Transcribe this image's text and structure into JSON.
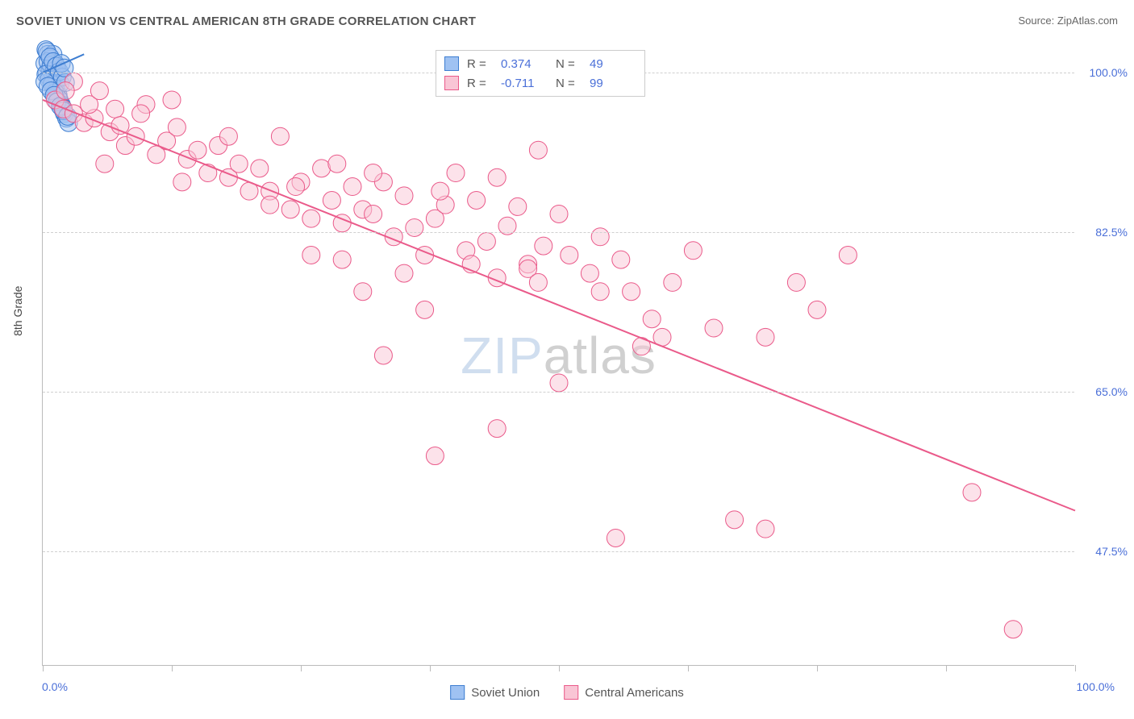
{
  "title": "SOVIET UNION VS CENTRAL AMERICAN 8TH GRADE CORRELATION CHART",
  "source": "Source: ZipAtlas.com",
  "watermark": {
    "zip": "ZIP",
    "atlas": "atlas"
  },
  "yaxis_title": "8th Grade",
  "chart": {
    "type": "scatter",
    "background_color": "#ffffff",
    "grid_color": "#d0d0d0",
    "axis_color": "#bbbbbb",
    "xlim": [
      0,
      100
    ],
    "ylim": [
      35,
      103
    ],
    "ytick_values": [
      47.5,
      65.0,
      82.5,
      100.0
    ],
    "ytick_labels": [
      "47.5%",
      "65.0%",
      "82.5%",
      "100.0%"
    ],
    "xtick_positions": [
      0,
      12.5,
      25,
      37.5,
      50,
      62.5,
      75,
      87.5,
      100
    ],
    "x_left_label": "0.0%",
    "x_right_label": "100.0%",
    "label_color": "#4a6fd8",
    "label_fontsize": 14,
    "marker_radius": 11,
    "marker_opacity": 0.5,
    "line_width": 2,
    "series": [
      {
        "name": "Soviet Union",
        "color_fill": "#9fc2f2",
        "color_stroke": "#3e7ed1",
        "R": "0.374",
        "N": "49",
        "trend": {
          "x1": 0,
          "y1": 100,
          "x2": 4,
          "y2": 102
        },
        "points": [
          [
            0.3,
            102.5
          ],
          [
            0.5,
            102
          ],
          [
            0.8,
            101.5
          ],
          [
            1.0,
            102
          ],
          [
            1.2,
            101
          ],
          [
            1.4,
            100.5
          ],
          [
            0.4,
            100
          ],
          [
            0.6,
            99.5
          ],
          [
            0.9,
            99
          ],
          [
            1.1,
            98.5
          ],
          [
            1.3,
            98
          ],
          [
            1.5,
            97.5
          ],
          [
            0.2,
            101
          ],
          [
            0.7,
            100.3
          ],
          [
            1.0,
            99.7
          ],
          [
            1.6,
            97
          ],
          [
            1.8,
            96.5
          ],
          [
            2.0,
            96
          ],
          [
            0.5,
            101.2
          ],
          [
            0.8,
            100.8
          ],
          [
            1.1,
            100.2
          ],
          [
            1.4,
            99.3
          ],
          [
            1.7,
            98.8
          ],
          [
            2.1,
            95.5
          ],
          [
            0.3,
            99.8
          ],
          [
            0.6,
            99.2
          ],
          [
            0.9,
            98.7
          ],
          [
            1.2,
            97.8
          ],
          [
            1.5,
            97.2
          ],
          [
            1.9,
            96.2
          ],
          [
            2.3,
            95
          ],
          [
            2.5,
            94.5
          ],
          [
            0.4,
            102.3
          ],
          [
            0.7,
            101.7
          ],
          [
            1.0,
            101.2
          ],
          [
            1.3,
            100.7
          ],
          [
            1.6,
            100.1
          ],
          [
            1.9,
            99.5
          ],
          [
            2.2,
            98.9
          ],
          [
            0.2,
            99
          ],
          [
            0.5,
            98.5
          ],
          [
            0.8,
            98
          ],
          [
            1.1,
            97.5
          ],
          [
            1.4,
            96.8
          ],
          [
            1.7,
            96.3
          ],
          [
            2.0,
            95.8
          ],
          [
            2.4,
            95.2
          ],
          [
            1.8,
            101
          ],
          [
            2.1,
            100.5
          ]
        ]
      },
      {
        "name": "Central Americans",
        "color_fill": "#f9c5d5",
        "color_stroke": "#ea5a8a",
        "R": "-0.711",
        "N": "99",
        "trend": {
          "x1": 0,
          "y1": 97,
          "x2": 100,
          "y2": 52
        },
        "points": [
          [
            1.2,
            97
          ],
          [
            2,
            96
          ],
          [
            3,
            95.5
          ],
          [
            4,
            94.5
          ],
          [
            5,
            95
          ],
          [
            6.5,
            93.5
          ],
          [
            7,
            96
          ],
          [
            8,
            92
          ],
          [
            9,
            93
          ],
          [
            11,
            91
          ],
          [
            12,
            92.5
          ],
          [
            13,
            94
          ],
          [
            14,
            90.5
          ],
          [
            16,
            89
          ],
          [
            17,
            92
          ],
          [
            18,
            88.5
          ],
          [
            19,
            90
          ],
          [
            21,
            89.5
          ],
          [
            22,
            87
          ],
          [
            23,
            93
          ],
          [
            24,
            85
          ],
          [
            25,
            88
          ],
          [
            26,
            84
          ],
          [
            27,
            89.5
          ],
          [
            28,
            86
          ],
          [
            29,
            83.5
          ],
          [
            30,
            87.5
          ],
          [
            31,
            85
          ],
          [
            32,
            84.5
          ],
          [
            33,
            88
          ],
          [
            34,
            82
          ],
          [
            35,
            86.5
          ],
          [
            36,
            83
          ],
          [
            37,
            80
          ],
          [
            38,
            84
          ],
          [
            39,
            85.5
          ],
          [
            40,
            89
          ],
          [
            41,
            80.5
          ],
          [
            42,
            86
          ],
          [
            43,
            81.5
          ],
          [
            44,
            88.5
          ],
          [
            44,
            61
          ],
          [
            45,
            83.2
          ],
          [
            46,
            85.3
          ],
          [
            47,
            79
          ],
          [
            48,
            91.5
          ],
          [
            33,
            69
          ],
          [
            26,
            80
          ],
          [
            22,
            85.5
          ],
          [
            31,
            76
          ],
          [
            35,
            78
          ],
          [
            29,
            79.5
          ],
          [
            37,
            74
          ],
          [
            44,
            77.5
          ],
          [
            47,
            78.5
          ],
          [
            48,
            77
          ],
          [
            50,
            84.5
          ],
          [
            50,
            66
          ],
          [
            51,
            80
          ],
          [
            53,
            78
          ],
          [
            54,
            82
          ],
          [
            56,
            79.5
          ],
          [
            57,
            76
          ],
          [
            59,
            73
          ],
          [
            55.5,
            49
          ],
          [
            38,
            58
          ],
          [
            61,
            77
          ],
          [
            63,
            80.5
          ],
          [
            65,
            72
          ],
          [
            60,
            71
          ],
          [
            58,
            70
          ],
          [
            67,
            51
          ],
          [
            70,
            71
          ],
          [
            70,
            50
          ],
          [
            73,
            77
          ],
          [
            75,
            74
          ],
          [
            78,
            80
          ],
          [
            90,
            54
          ],
          [
            94,
            39
          ],
          [
            54,
            76
          ],
          [
            18,
            93
          ],
          [
            6,
            90
          ],
          [
            3,
            99
          ],
          [
            2.2,
            98
          ],
          [
            4.5,
            96.5
          ],
          [
            7.5,
            94.2
          ],
          [
            5.5,
            98
          ],
          [
            10,
            96.5
          ],
          [
            12.5,
            97
          ],
          [
            9.5,
            95.5
          ],
          [
            15,
            91.5
          ],
          [
            13.5,
            88
          ],
          [
            20,
            87
          ],
          [
            28.5,
            90
          ],
          [
            24.5,
            87.5
          ],
          [
            32,
            89
          ],
          [
            41.5,
            79
          ],
          [
            48.5,
            81
          ],
          [
            38.5,
            87
          ]
        ]
      }
    ]
  },
  "legend_bottom": [
    {
      "label": "Soviet Union",
      "fill": "#9fc2f2",
      "stroke": "#3e7ed1"
    },
    {
      "label": "Central Americans",
      "fill": "#f9c5d5",
      "stroke": "#ea5a8a"
    }
  ]
}
